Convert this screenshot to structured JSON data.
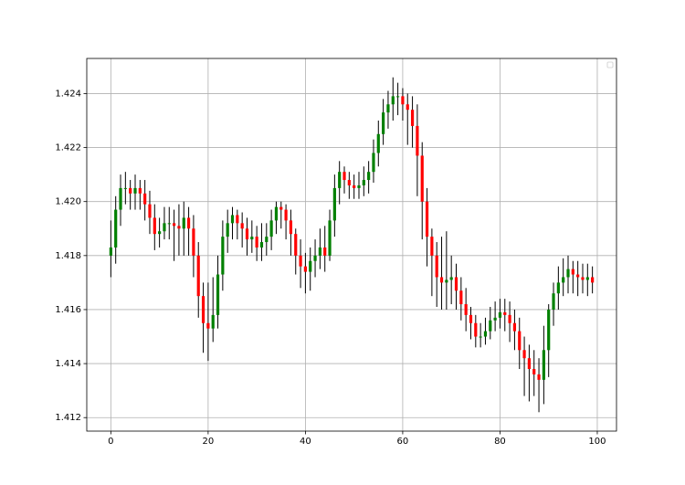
{
  "chart_data": {
    "type": "candlestick",
    "x": [
      0,
      1,
      2,
      3,
      4,
      5,
      6,
      7,
      8,
      9,
      10,
      11,
      12,
      13,
      14,
      15,
      16,
      17,
      18,
      19,
      20,
      21,
      22,
      23,
      24,
      25,
      26,
      27,
      28,
      29,
      30,
      31,
      32,
      33,
      34,
      35,
      36,
      37,
      38,
      39,
      40,
      41,
      42,
      43,
      44,
      45,
      46,
      47,
      48,
      49,
      50,
      51,
      52,
      53,
      54,
      55,
      56,
      57,
      58,
      59,
      60,
      61,
      62,
      63,
      64,
      65,
      66,
      67,
      68,
      69,
      70,
      71,
      72,
      73,
      74,
      75,
      76,
      77,
      78,
      79,
      80,
      81,
      82,
      83,
      84,
      85,
      86,
      87,
      88,
      89,
      90,
      91,
      92,
      93,
      94,
      95,
      96,
      97,
      98,
      99
    ],
    "open": [
      1.418,
      1.4183,
      1.4197,
      1.4205,
      1.4205,
      1.4203,
      1.4205,
      1.4203,
      1.4199,
      1.4194,
      1.4188,
      1.4189,
      1.4192,
      1.4192,
      1.4191,
      1.419,
      1.4194,
      1.419,
      1.418,
      1.4165,
      1.4155,
      1.4153,
      1.4158,
      1.4173,
      1.4187,
      1.4192,
      1.4195,
      1.4192,
      1.419,
      1.4186,
      1.4187,
      1.4183,
      1.4185,
      1.4187,
      1.4193,
      1.4198,
      1.4197,
      1.4193,
      1.4188,
      1.418,
      1.4176,
      1.4174,
      1.4178,
      1.418,
      1.4183,
      1.418,
      1.4193,
      1.4205,
      1.4211,
      1.4208,
      1.4206,
      1.4205,
      1.4206,
      1.4208,
      1.4211,
      1.4218,
      1.4225,
      1.4233,
      1.4236,
      1.4239,
      1.4239,
      1.4236,
      1.4234,
      1.4228,
      1.4217,
      1.42,
      1.4187,
      1.418,
      1.4172,
      1.417,
      1.4171,
      1.4172,
      1.4167,
      1.4162,
      1.4158,
      1.4155,
      1.415,
      1.415,
      1.4152,
      1.4156,
      1.4157,
      1.4159,
      1.4158,
      1.4155,
      1.4152,
      1.4145,
      1.4142,
      1.4138,
      1.4136,
      1.4134,
      1.4145,
      1.416,
      1.4166,
      1.417,
      1.4172,
      1.4175,
      1.4173,
      1.4172,
      1.4171,
      1.4172
    ],
    "high": [
      1.4193,
      1.4202,
      1.421,
      1.4211,
      1.4208,
      1.421,
      1.4208,
      1.4208,
      1.4204,
      1.4199,
      1.4194,
      1.4198,
      1.4198,
      1.4197,
      1.4199,
      1.42,
      1.4198,
      1.4195,
      1.4185,
      1.417,
      1.417,
      1.4172,
      1.418,
      1.4193,
      1.4197,
      1.4198,
      1.4197,
      1.4196,
      1.4194,
      1.4193,
      1.4191,
      1.4192,
      1.4192,
      1.4197,
      1.42,
      1.42,
      1.4199,
      1.4197,
      1.419,
      1.4186,
      1.4181,
      1.4183,
      1.4186,
      1.419,
      1.4191,
      1.4197,
      1.421,
      1.4215,
      1.4213,
      1.4211,
      1.421,
      1.4211,
      1.4213,
      1.4215,
      1.4223,
      1.423,
      1.4238,
      1.4241,
      1.4246,
      1.4244,
      1.4242,
      1.424,
      1.4239,
      1.4236,
      1.4222,
      1.4205,
      1.419,
      1.4185,
      1.4187,
      1.4189,
      1.418,
      1.4177,
      1.4172,
      1.4168,
      1.4161,
      1.4158,
      1.4155,
      1.4157,
      1.4161,
      1.4163,
      1.4164,
      1.4164,
      1.4163,
      1.416,
      1.4157,
      1.415,
      1.4147,
      1.4145,
      1.4142,
      1.4154,
      1.4162,
      1.417,
      1.4176,
      1.4179,
      1.418,
      1.4178,
      1.4178,
      1.4177,
      1.4177,
      1.4176
    ],
    "low": [
      1.4172,
      1.4177,
      1.4191,
      1.4199,
      1.4197,
      1.4197,
      1.4197,
      1.4193,
      1.4188,
      1.4182,
      1.4183,
      1.4186,
      1.4186,
      1.4178,
      1.418,
      1.418,
      1.418,
      1.4172,
      1.4157,
      1.4144,
      1.4141,
      1.4148,
      1.4153,
      1.4167,
      1.4181,
      1.4186,
      1.4186,
      1.4183,
      1.418,
      1.4181,
      1.4178,
      1.4178,
      1.418,
      1.4182,
      1.4188,
      1.419,
      1.4186,
      1.418,
      1.4173,
      1.4168,
      1.4166,
      1.4167,
      1.4172,
      1.4175,
      1.4174,
      1.4178,
      1.4187,
      1.4199,
      1.4203,
      1.4201,
      1.4201,
      1.4201,
      1.4202,
      1.4203,
      1.4207,
      1.4213,
      1.4221,
      1.4227,
      1.423,
      1.4232,
      1.423,
      1.4221,
      1.422,
      1.4202,
      1.4186,
      1.4176,
      1.4165,
      1.4161,
      1.416,
      1.416,
      1.4162,
      1.416,
      1.4156,
      1.4152,
      1.4149,
      1.4146,
      1.4146,
      1.4147,
      1.4149,
      1.4152,
      1.4153,
      1.4152,
      1.4148,
      1.4145,
      1.4138,
      1.4128,
      1.4126,
      1.4128,
      1.4122,
      1.4125,
      1.4135,
      1.4154,
      1.416,
      1.4165,
      1.4166,
      1.4166,
      1.4165,
      1.4166,
      1.4165,
      1.4166
    ],
    "close": [
      1.4183,
      1.4197,
      1.4205,
      1.4205,
      1.4203,
      1.4205,
      1.4203,
      1.4199,
      1.4194,
      1.4188,
      1.4189,
      1.4192,
      1.4192,
      1.4191,
      1.419,
      1.4194,
      1.419,
      1.418,
      1.4165,
      1.4155,
      1.4153,
      1.4158,
      1.4173,
      1.4187,
      1.4192,
      1.4195,
      1.4192,
      1.419,
      1.4186,
      1.4187,
      1.4183,
      1.4185,
      1.4187,
      1.4193,
      1.4198,
      1.4197,
      1.4193,
      1.4188,
      1.418,
      1.4176,
      1.4174,
      1.4178,
      1.418,
      1.4183,
      1.418,
      1.4193,
      1.4205,
      1.4211,
      1.4208,
      1.4206,
      1.4205,
      1.4206,
      1.4208,
      1.4211,
      1.4218,
      1.4225,
      1.4233,
      1.4236,
      1.4239,
      1.4239,
      1.4236,
      1.4234,
      1.4228,
      1.4217,
      1.42,
      1.4187,
      1.418,
      1.4172,
      1.417,
      1.4171,
      1.4172,
      1.4167,
      1.4162,
      1.4158,
      1.4155,
      1.415,
      1.415,
      1.4152,
      1.4156,
      1.4157,
      1.4159,
      1.4158,
      1.4155,
      1.4152,
      1.4145,
      1.4142,
      1.4138,
      1.4136,
      1.4134,
      1.4145,
      1.416,
      1.4166,
      1.417,
      1.4172,
      1.4175,
      1.4173,
      1.4172,
      1.4171,
      1.4172,
      1.417
    ],
    "up_color": "#008000",
    "down_color": "#ff0000",
    "wick_color": "#000000",
    "xlim": [
      -4.95,
      103.95
    ],
    "xticks": [
      0,
      20,
      40,
      60,
      80,
      100
    ],
    "ylim": [
      1.4115,
      1.4253
    ],
    "yticks": [
      1.412,
      1.414,
      1.416,
      1.418,
      {
        "value": 1.42,
        "label": "1.420"
      },
      1.422,
      1.424
    ],
    "grid": true,
    "legend": "upper right"
  }
}
